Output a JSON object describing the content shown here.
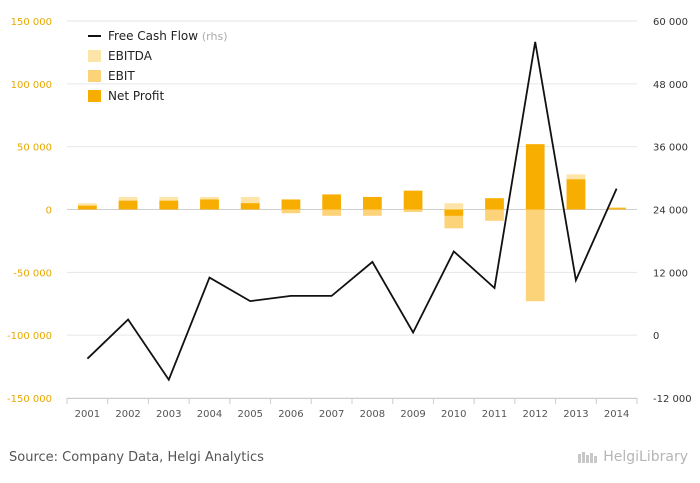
{
  "chart_data": {
    "type": "bar",
    "categories": [
      "2001",
      "2002",
      "2003",
      "2004",
      "2005",
      "2006",
      "2007",
      "2008",
      "2009",
      "2010",
      "2011",
      "2012",
      "2013",
      "2014"
    ],
    "series": [
      {
        "name": "EBITDA",
        "axis": "left",
        "color": "#fde4a8",
        "values": [
          5000,
          10000,
          10000,
          10000,
          10000,
          5000,
          5000,
          5000,
          5000,
          5000,
          5000,
          5000,
          28000,
          2000
        ]
      },
      {
        "name": "EBIT",
        "axis": "left",
        "color": "#fdd37a",
        "values": [
          3000,
          7000,
          7000,
          7000,
          5000,
          -3000,
          -5000,
          -5000,
          -2000,
          -15000,
          -9000,
          -73000,
          24000,
          1000
        ]
      },
      {
        "name": "Net Profit",
        "axis": "left",
        "color": "#f8ae00",
        "values": [
          3000,
          7000,
          7000,
          8000,
          5000,
          8000,
          12000,
          10000,
          15000,
          -5000,
          9000,
          52000,
          24000,
          1000
        ]
      },
      {
        "name": "Free Cash Flow",
        "rhs_suffix": "(rhs)",
        "axis": "right",
        "type": "line",
        "color": "#111111",
        "values": [
          -4500,
          3000,
          -8500,
          11000,
          6500,
          7500,
          7500,
          14000,
          500,
          16000,
          9000,
          56000,
          10500,
          28000
        ]
      }
    ],
    "left_axis": {
      "ylim": [
        -150000,
        150000
      ],
      "ticks": [
        -150000,
        -100000,
        -50000,
        0,
        50000,
        100000,
        150000
      ],
      "tick_labels": [
        "-150 000",
        "-100 000",
        "-50 000",
        "0",
        "50 000",
        "100 000",
        "150 000"
      ]
    },
    "right_axis": {
      "ylim": [
        -12000,
        60000
      ],
      "ticks": [
        -12000,
        0,
        12000,
        24000,
        36000,
        48000,
        60000
      ],
      "tick_labels": [
        "-12 000",
        "0",
        "12 000",
        "24 000",
        "36 000",
        "48 000",
        "60 000"
      ]
    },
    "grid": "horizontal",
    "legend_position": "top-left"
  },
  "colors": {
    "accent": "#f8ae00",
    "left_tick": "#e8a800",
    "grid": "#e6e6e6"
  },
  "footer": {
    "source": "Source: Company Data, Helgi Analytics",
    "brand": "HelgiLibrary"
  }
}
